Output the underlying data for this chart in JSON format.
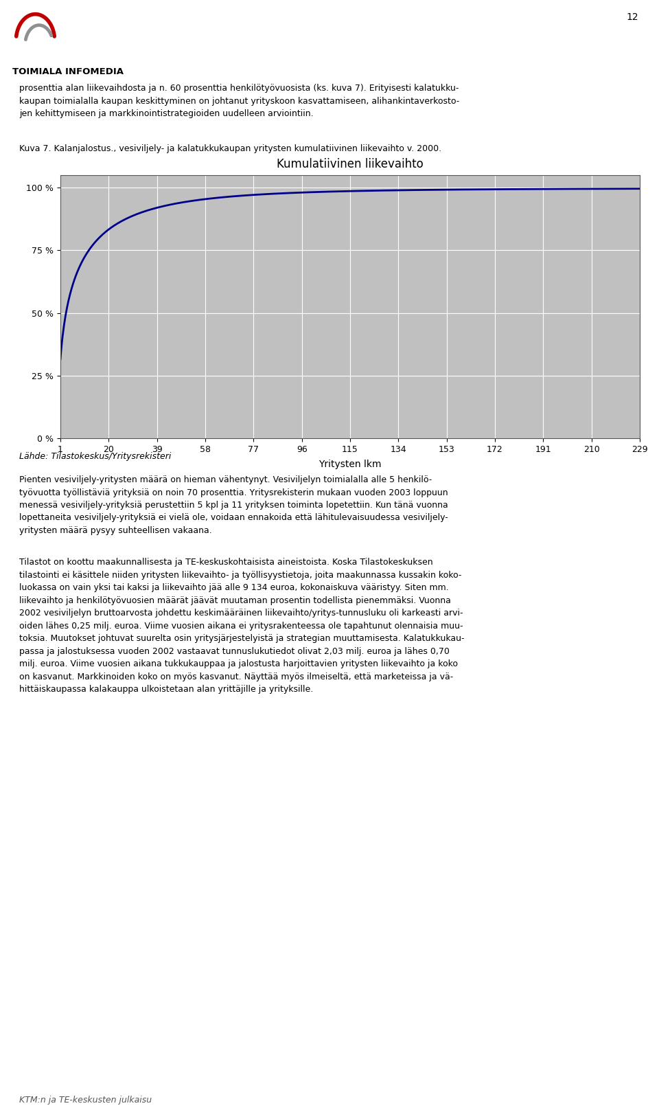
{
  "title": "Kumulatiivinen liikevaihto",
  "xlabel": "Yritysten lkm",
  "ytick_labels": [
    "0 %",
    "25 %",
    "50 %",
    "75 %",
    "100 %"
  ],
  "ytick_values": [
    0,
    25,
    50,
    75,
    100
  ],
  "xtick_values": [
    1,
    20,
    39,
    58,
    77,
    96,
    115,
    134,
    153,
    172,
    191,
    210,
    229
  ],
  "line_color": "#00008B",
  "line_width": 2.0,
  "plot_bg_color": "#C0C0C0",
  "fig_bg_color": "#FFFFFF",
  "grid_color": "#FFFFFF",
  "caption": "Kuva 7. Kalanjalostus., vesiviljely- ja kalatukkukaupan yritysten kumulatiivinen liikevaihto v. 2000.",
  "source_text": "Lähde: Tilastokeskus/Yritysrekisteri",
  "header_text": "prosenttia alan liikevaihdosta ja n. 60 prosenttia henkilötyövuosista (ks. kuva 7). Erityisesti kalatukku-\nkaupan toimialalla kaupan keskittyminen on johtanut yrityskoon kasvattamiseen, alihankintaverkosto-\njen kehittymiseen ja markkinointistrategioiden uudelleen arviointiin.",
  "body_text1": "Pienten vesiviljely-yritysten määrä on hieman vähentynyt. Vesiviljelyn toimialalla alle 5 henkilö-\ntyövuotta työllistäviä yrityksiä on noin 70 prosenttia. Yritysrekisterin mukaan vuoden 2003 loppuun\nmenessä vesiviljely-yrityksiä perustettiin 5 kpl ja 11 yrityksen toiminta lopetettiin. Kun tänä vuonna\nlopettaneita vesiviljely-yrityksiä ei vielä ole, voidaan ennakoida että lähitulevaisuudessa vesiviljely-\nyritysten määrä pysyy suhteellisen vakaana.",
  "body_text2": "Tilastot on koottu maakunnallisesta ja TE-keskuskohtaisista aineistoista. Koska Tilastokeskuksen\ntilastointi ei käsittele niiden yritysten liikevaihto- ja työllisyystietoja, joita maakunnassa kussakin koko-\nluokassa on vain yksi tai kaksi ja liikevaihto jää alle 9 134 euroa, kokonaiskuva vääristyy. Siten mm.\nliikevaihto ja henkilötyövuosien määrät jäävät muutaman prosentin todellista pienemmäksi. Vuonna\n2002 vesiviljelyn bruttoarvosta johdettu keskimääräinen liikevaihto/yritys-tunnusluku oli karkeasti arvi-\noiden lähes 0,25 milj. euroa. Viime vuosien aikana ei yritysrakenteessa ole tapahtunut olennaisia muu-\ntoksia. Muutokset johtuvat suurelta osin yritysjärjestelyistä ja strategian muuttamisesta. Kalatukkukau-\npassa ja jalostuksessa vuoden 2002 vastaavat tunnuslukutiedot olivat 2,03 milj. euroa ja lähes 0,70\nmilj. euroa. Viime vuosien aikana tukkukauppaa ja jalostusta harjoittavien yritysten liikevaihto ja koko\non kasvanut. Markkinoiden koko on myös kasvanut. Näyttää myös ilmeiseltä, että marketeissa ja vä-\nhittäiskaupassa kalakauppa ulkoistetaan alan yrittäjille ja yrityksille.",
  "footer_text": "KTM:n ja TE-keskusten julkaisu",
  "page_number": "12",
  "logo_text": "TOIMIALA INFOMEDIA",
  "curve_k": 0.38,
  "curve_p": 0.52
}
